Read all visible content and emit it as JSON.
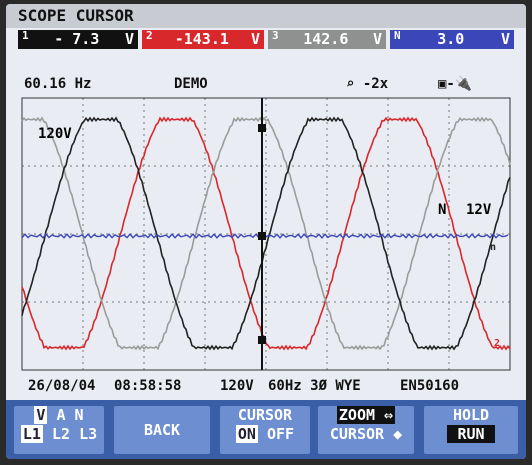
{
  "header": {
    "title": "SCOPE CURSOR"
  },
  "readings": [
    {
      "channel": "1",
      "value": "- 7.3",
      "unit": "V"
    },
    {
      "channel": "2",
      "value": "-143.1",
      "unit": "V"
    },
    {
      "channel": "3",
      "value": "142.6",
      "unit": "V"
    },
    {
      "channel": "N",
      "value": "3.0",
      "unit": "V"
    }
  ],
  "status": {
    "frequency": "60.16 Hz",
    "mode": "DEMO",
    "zoom": "-2x"
  },
  "labels": {
    "scale_left": "120V",
    "neutral": "N",
    "scale_right": "12V",
    "trace_n": "n",
    "trace_2": "2"
  },
  "footer": {
    "date": "26/08/04",
    "time": "08:58:58",
    "voltage": "120V",
    "config": "60Hz 3Ø WYE",
    "standard": "EN50160"
  },
  "buttons": [
    {
      "top": [
        "V",
        "A",
        "N"
      ],
      "bottom": [
        "L1",
        "L2",
        "L3"
      ]
    },
    {
      "label": "BACK"
    },
    {
      "top": "CURSOR",
      "on": "ON",
      "off": "OFF"
    },
    {
      "top": "ZOOM ⇔",
      "bottom": "CURSOR ◆"
    },
    {
      "top": "HOLD",
      "bottom": "RUN"
    }
  ]
}
